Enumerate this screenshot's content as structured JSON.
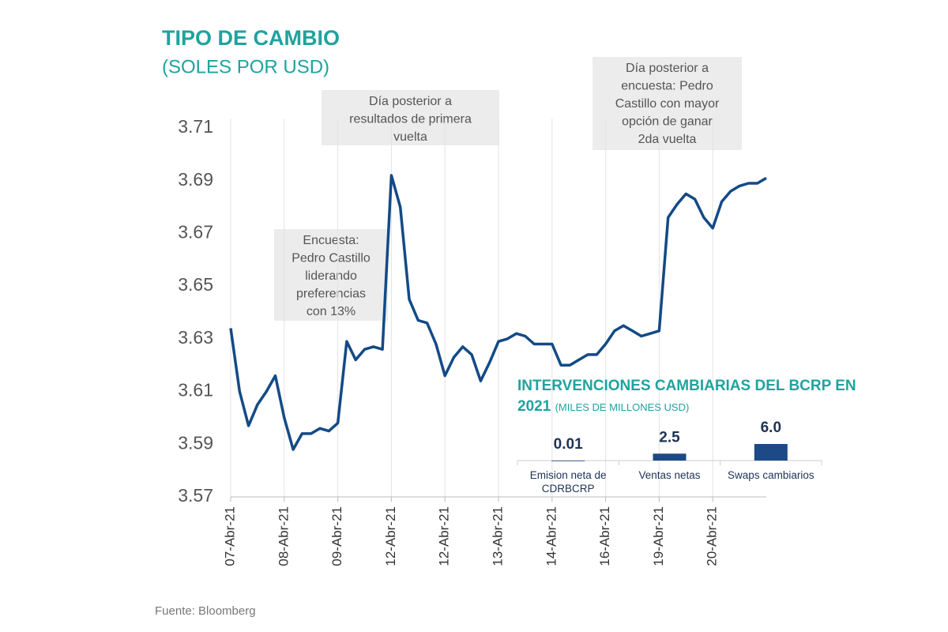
{
  "chart_data": [
    {
      "type": "line",
      "title": "TIPO DE CAMBIO",
      "subtitle": "(SOLES POR USD)",
      "categories": [
        "07-Abr-21",
        null,
        null,
        null,
        null,
        null,
        "08-Abr-21",
        null,
        null,
        null,
        null,
        null,
        "09-Abr-21",
        null,
        null,
        null,
        null,
        null,
        "12-Abr-21",
        null,
        null,
        null,
        null,
        null,
        "12-Abr-21",
        null,
        null,
        null,
        null,
        null,
        "13-Abr-21",
        null,
        null,
        null,
        null,
        null,
        "14-Abr-21",
        null,
        null,
        null,
        null,
        null,
        "16-Abr-21",
        null,
        null,
        null,
        null,
        null,
        "19-Abr-21",
        null,
        null,
        null,
        null,
        null,
        "20-Abr-21",
        null,
        null,
        null,
        null,
        null,
        null
      ],
      "values": [
        3.634,
        3.61,
        3.597,
        3.605,
        3.61,
        3.616,
        3.6,
        3.588,
        3.594,
        3.594,
        3.596,
        3.595,
        3.598,
        3.629,
        3.622,
        3.626,
        3.627,
        3.626,
        3.692,
        3.68,
        3.645,
        3.637,
        3.636,
        3.628,
        3.616,
        3.623,
        3.627,
        3.624,
        3.614,
        3.621,
        3.629,
        3.63,
        3.632,
        3.631,
        3.628,
        3.628,
        3.628,
        3.62,
        3.62,
        3.622,
        3.624,
        3.624,
        3.628,
        3.633,
        3.635,
        3.633,
        3.631,
        3.632,
        3.633,
        3.676,
        3.681,
        3.685,
        3.683,
        3.676,
        3.672,
        3.682,
        3.686,
        3.688,
        3.689,
        3.689,
        3.691
      ],
      "color": "#134a86",
      "ylim": [
        3.57,
        3.71
      ],
      "yticks": [
        3.57,
        3.59,
        3.61,
        3.63,
        3.65,
        3.67,
        3.69,
        3.71
      ],
      "grid": "x",
      "annotations": [
        {
          "lines": [
            "Encuesta:",
            "Pedro Castillo",
            "liderando",
            "preferencias",
            "con 13%"
          ]
        },
        {
          "lines": [
            "Día posterior a",
            "resultados de primera",
            "vuelta"
          ]
        },
        {
          "lines": [
            "Día posterior a",
            "encuesta: Pedro",
            "Castillo con mayor",
            "opción de ganar",
            "2da vuelta"
          ]
        }
      ],
      "source": "Fuente: Bloomberg"
    },
    {
      "type": "bar",
      "title": "INTERVENCIONES CAMBIARIAS DEL BCRP EN 2021",
      "subtitle": "(MILES DE MILLONES USD)",
      "categories": [
        "Emision neta de CDRBCRP",
        "Ventas netas",
        "Swaps cambiarios"
      ],
      "values": [
        0.01,
        2.5,
        6.0
      ],
      "value_labels": [
        "0.01",
        "2.5",
        "6.0"
      ],
      "color": "#1d4a86"
    }
  ]
}
